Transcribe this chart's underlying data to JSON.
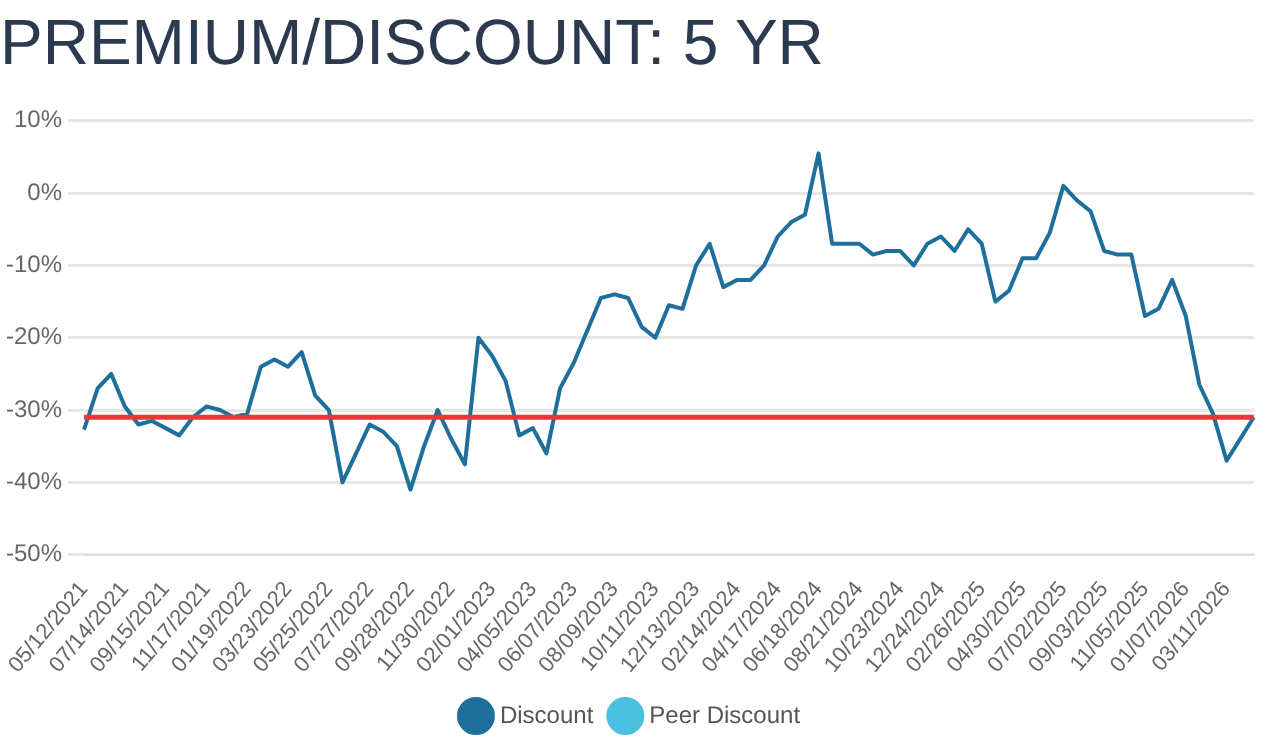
{
  "chart_data": {
    "type": "line",
    "title": "PREMIUM/DISCOUNT: 5 YR",
    "categories": [
      "05/12/2021",
      null,
      null,
      "07/14/2021",
      null,
      null,
      "09/15/2021",
      null,
      null,
      "11/17/2021",
      null,
      null,
      "01/19/2022",
      null,
      null,
      "03/23/2022",
      null,
      null,
      "05/25/2022",
      null,
      null,
      "07/27/2022",
      null,
      null,
      "09/28/2022",
      null,
      null,
      "11/30/2022",
      null,
      null,
      "02/01/2023",
      null,
      null,
      "04/05/2023",
      null,
      null,
      "06/07/2023",
      null,
      null,
      "08/09/2023",
      null,
      null,
      "10/11/2023",
      null,
      null,
      "12/13/2023",
      null,
      null,
      "02/14/2024",
      null,
      null,
      "04/17/2024",
      null,
      null,
      "06/18/2024",
      null,
      null,
      "08/21/2024",
      null,
      null,
      "10/23/2024",
      null,
      null,
      "12/24/2024",
      null,
      null,
      "02/26/2025",
      null,
      null,
      "04/30/2025",
      null,
      null,
      "07/02/2025",
      null,
      null,
      "09/03/2025",
      null,
      null,
      "11/05/2025",
      null,
      null,
      "01/07/2026",
      null,
      null,
      "03/11/2026",
      null,
      null
    ],
    "series": [
      {
        "name": "Discount",
        "color": "#1f6f9c",
        "values": [
          -32.7,
          -27,
          -25,
          -29.5,
          -32,
          -31.5,
          -32.5,
          -33.5,
          -31,
          -29.5,
          -30,
          -31,
          -30.5,
          -24,
          -23,
          -24,
          -22,
          -28,
          -30,
          -40,
          -36,
          -32,
          -33,
          -35,
          -41,
          -35,
          -30,
          -34,
          -37.5,
          -20,
          -22.5,
          -26,
          -33.5,
          -32.5,
          -36,
          -27,
          -23.5,
          -19,
          -14.5,
          -14,
          -14.5,
          -18.5,
          -20,
          -15.5,
          -16,
          -10,
          -7,
          -13,
          -12,
          -12,
          -10,
          -6,
          -4,
          -3,
          5.5,
          -7,
          -7,
          -7,
          -8.5,
          -8,
          -8,
          -10,
          -7,
          -6,
          -8,
          -5,
          -7,
          -15,
          -13.5,
          -9,
          -9,
          -5.5,
          1,
          -1,
          -2.5,
          -8,
          -8.5,
          -8.5,
          -17,
          -16,
          -12,
          -17,
          -26.5,
          -30.5,
          -37,
          -34,
          -31
        ]
      },
      {
        "name": "Peer Discount",
        "color": "#4bbfe0",
        "values": [
          null,
          null,
          null,
          null,
          null,
          null,
          null,
          null,
          null,
          null,
          null,
          null,
          null,
          null,
          null,
          null,
          null,
          null,
          null,
          null,
          null,
          null,
          null,
          null,
          null,
          null,
          null,
          null,
          null,
          null,
          null,
          null,
          null,
          null,
          null,
          null,
          null,
          null,
          null,
          null,
          null,
          null,
          null,
          null,
          null,
          null,
          null,
          null,
          null,
          null,
          null,
          null,
          null,
          null,
          null,
          null,
          null,
          null,
          null,
          null,
          null,
          null,
          null,
          null,
          null,
          null,
          null,
          null,
          null,
          null,
          null,
          null,
          null,
          null,
          null,
          null,
          null,
          null,
          null,
          null,
          null,
          null,
          null,
          null,
          null,
          null,
          null
        ]
      }
    ],
    "ylim": [
      -50,
      10
    ],
    "yticks": [
      {
        "value": -50,
        "label": "-50%"
      },
      {
        "value": -40,
        "label": "-40%"
      },
      {
        "value": -30,
        "label": "-30%"
      },
      {
        "value": -20,
        "label": "-20%"
      },
      {
        "value": -10,
        "label": "-10%"
      },
      {
        "value": 0,
        "label": "0%"
      },
      {
        "value": 10,
        "label": "10%"
      }
    ],
    "ref_lines": [
      {
        "axis": "y",
        "value": -31,
        "color": "#e53935"
      }
    ],
    "grid": "y",
    "legend": "bottom",
    "marker": "none",
    "line_style": "solid"
  }
}
